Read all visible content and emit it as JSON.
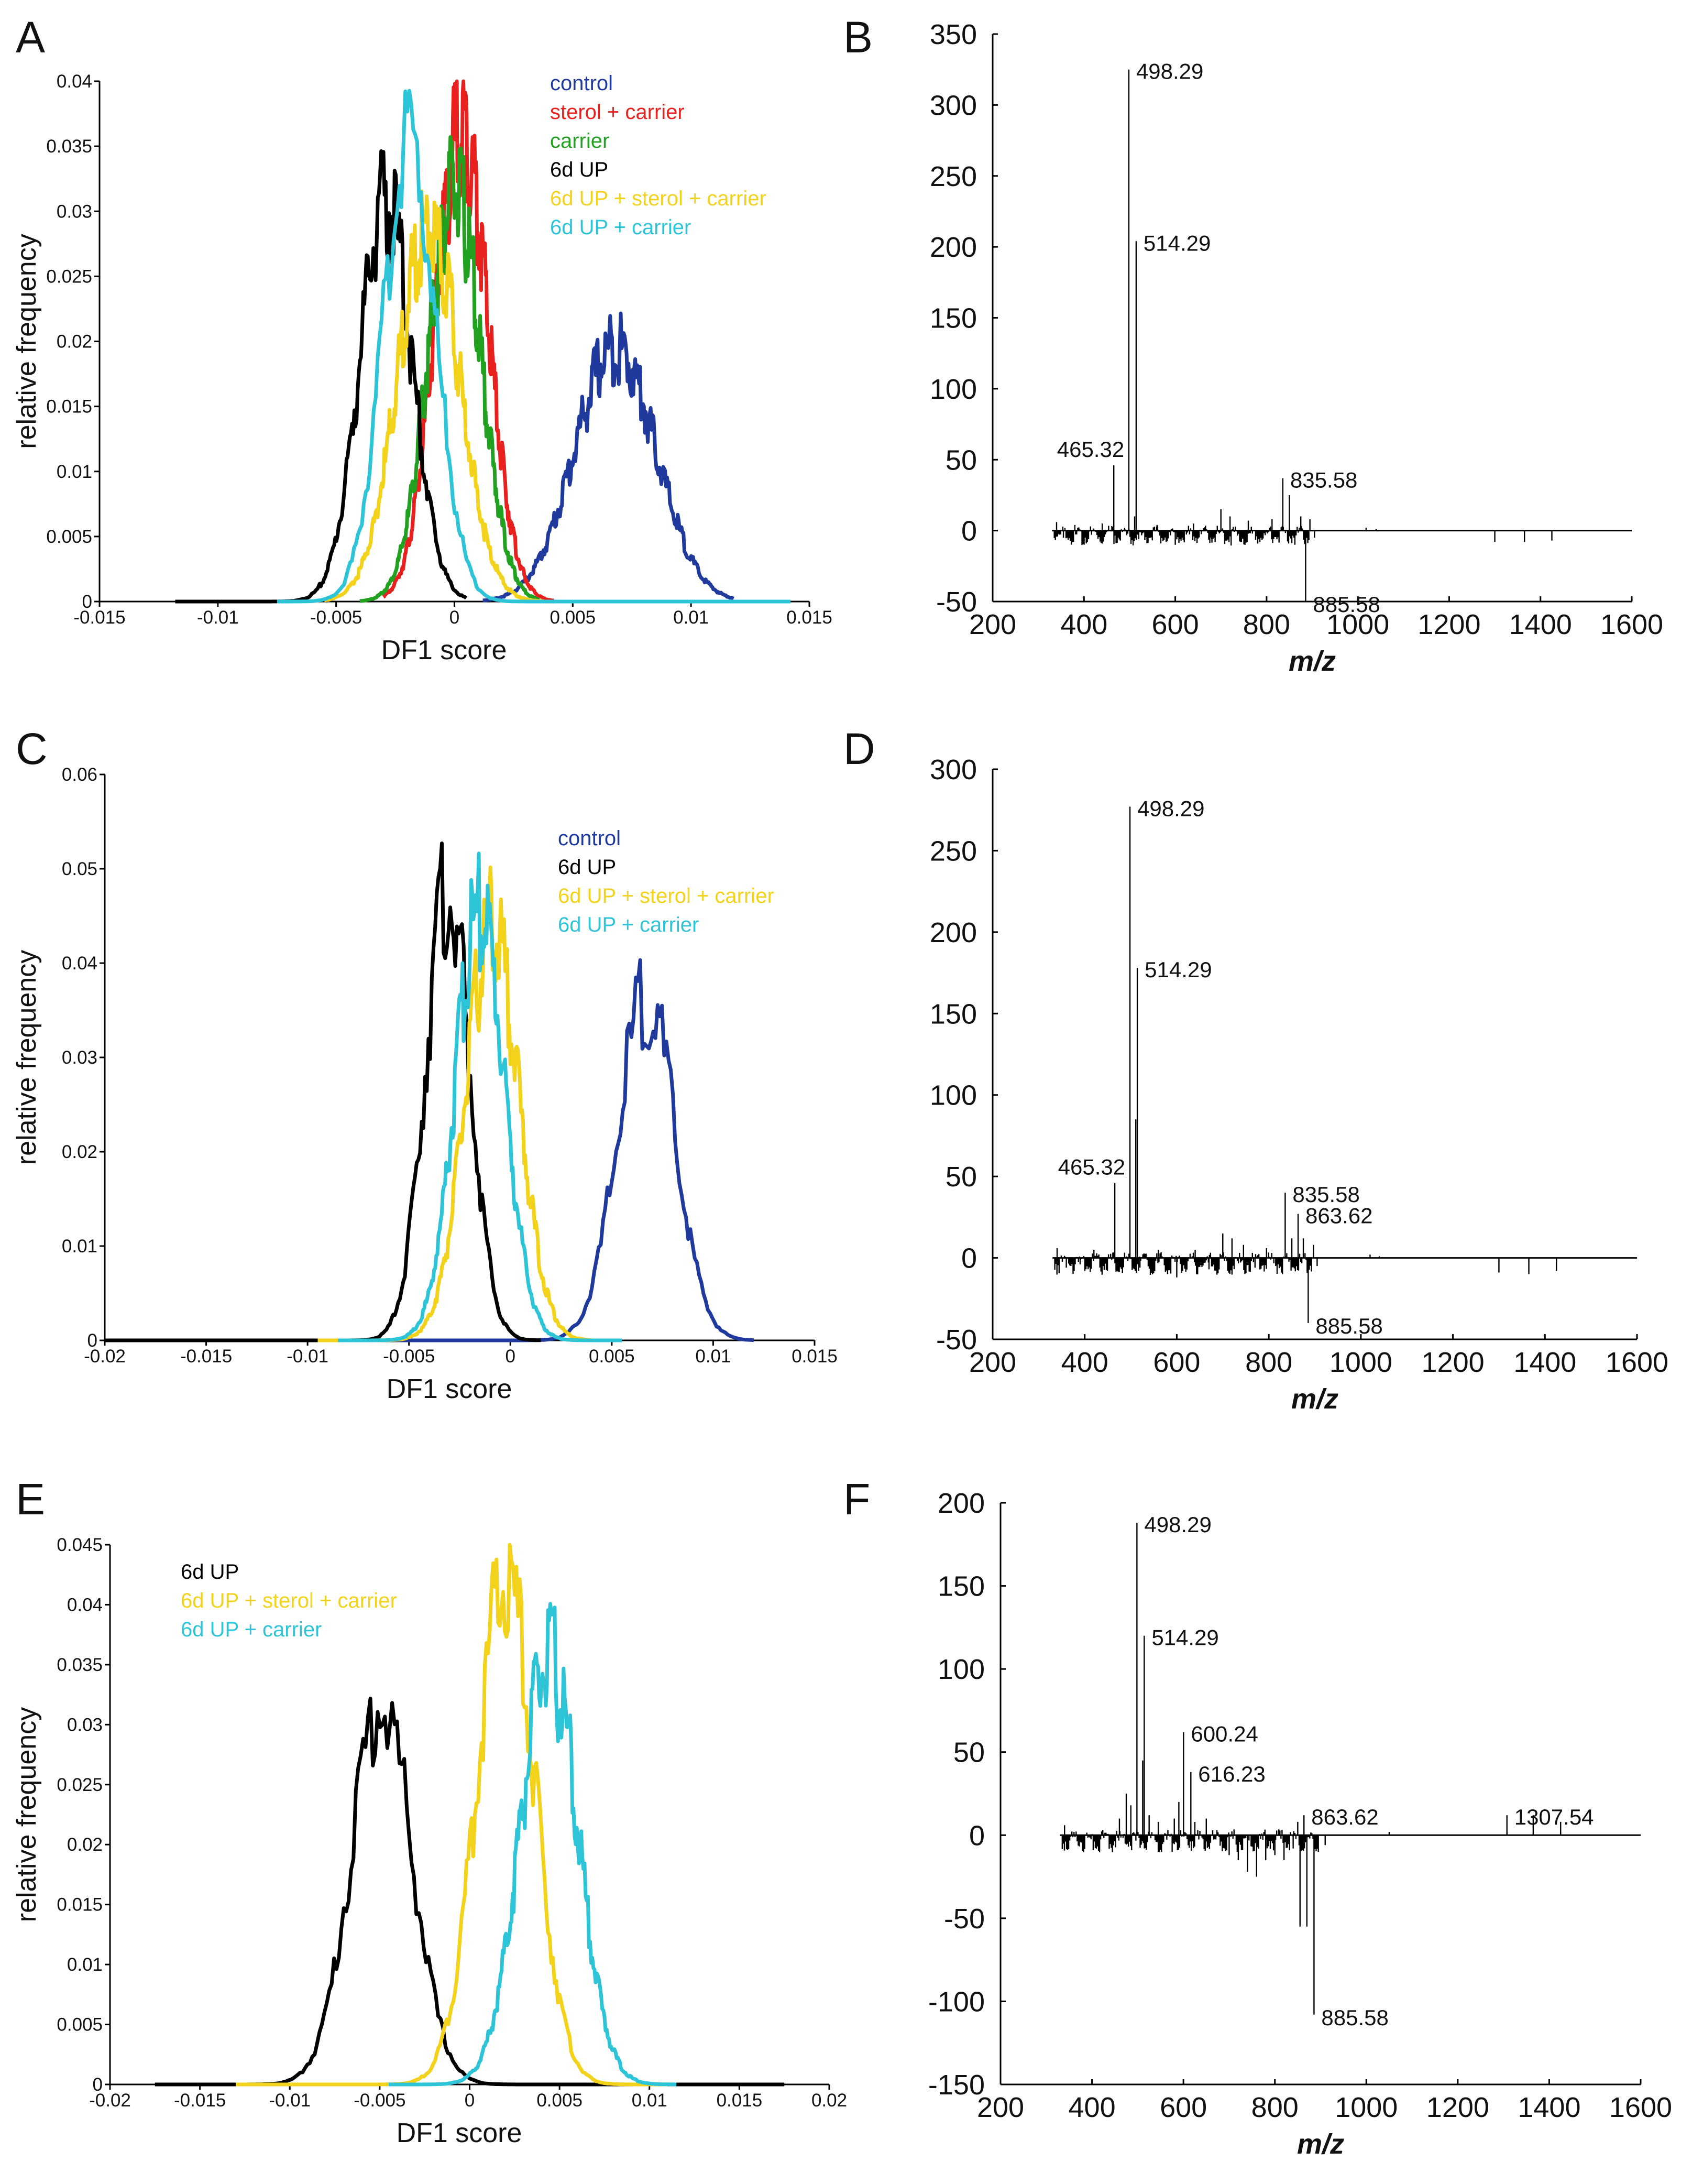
{
  "chart_data": [
    {
      "id": "A",
      "panel_label": "A",
      "type": "line",
      "xlabel": "DF1 score",
      "ylabel": "relative frequency",
      "xlim": [
        -0.015,
        0.015
      ],
      "ylim": [
        0,
        0.04
      ],
      "xticks": [
        "-0.015",
        "-0.01",
        "-0.005",
        "0",
        "0.005",
        "0.01",
        "0.015"
      ],
      "yticks": [
        "0",
        "0.005",
        "0.01",
        "0.015",
        "0.02",
        "0.025",
        "0.03",
        "0.035",
        "0.04"
      ],
      "legend_position": "top-right",
      "series": [
        {
          "name": "control",
          "color": "#1f3a9c",
          "mean": 0.0068,
          "sd": 0.0017,
          "peak": 0.021,
          "range": [
            0.0012,
            0.0118
          ]
        },
        {
          "name": "sterol + carrier",
          "color": "#e8201e",
          "mean": 0.0003,
          "sd": 0.0011,
          "peak": 0.039,
          "range": [
            -0.003,
            0.0042
          ]
        },
        {
          "name": "carrier",
          "color": "#22a020",
          "mean": 0.0,
          "sd": 0.0011,
          "peak": 0.034,
          "range": [
            -0.004,
            0.0036
          ]
        },
        {
          "name": "6d UP",
          "color": "#000000",
          "mean": -0.0029,
          "sd": 0.0011,
          "peak": 0.033,
          "range": [
            -0.0118,
            0.0005
          ]
        },
        {
          "name": "6d UP + sterol + carrier",
          "color": "#f2d21a",
          "mean": -0.0011,
          "sd": 0.0013,
          "peak": 0.031,
          "range": [
            -0.0055,
            0.0038
          ]
        },
        {
          "name": "6d UP + carrier",
          "color": "#2ec4d8",
          "mean": -0.0019,
          "sd": 0.0011,
          "peak": 0.038,
          "range": [
            -0.0075,
            0.0142
          ]
        }
      ]
    },
    {
      "id": "B",
      "panel_label": "B",
      "type": "bar",
      "xlabel": "m/z",
      "ylabel": "",
      "xlim": [
        200,
        1600
      ],
      "ylim": [
        -50,
        350
      ],
      "xticks": [
        "200",
        "400",
        "600",
        "800",
        "1000",
        "1200",
        "1400",
        "1600"
      ],
      "yticks": [
        "-50",
        "0",
        "50",
        "100",
        "150",
        "200",
        "250",
        "300",
        "350"
      ],
      "peaks": [
        {
          "mz": 498.29,
          "value": 325,
          "label": "498.29"
        },
        {
          "mz": 514.29,
          "value": 204,
          "label": "514.29"
        },
        {
          "mz": 465.32,
          "value": 46,
          "label": "465.32"
        },
        {
          "mz": 835.58,
          "value": 37,
          "label": "835.58"
        },
        {
          "mz": 885.58,
          "value": -50,
          "label": "885.58"
        },
        {
          "mz": 511,
          "value": 10
        },
        {
          "mz": 520,
          "value": -6
        },
        {
          "mz": 340,
          "value": 6
        },
        {
          "mz": 355,
          "value": -5
        },
        {
          "mz": 380,
          "value": 4
        },
        {
          "mz": 410,
          "value": -6
        },
        {
          "mz": 440,
          "value": 5
        },
        {
          "mz": 560,
          "value": 4
        },
        {
          "mz": 580,
          "value": -8
        },
        {
          "mz": 600,
          "value": -10
        },
        {
          "mz": 640,
          "value": 5
        },
        {
          "mz": 680,
          "value": -6
        },
        {
          "mz": 700,
          "value": 15
        },
        {
          "mz": 720,
          "value": 10
        },
        {
          "mz": 745,
          "value": -8
        },
        {
          "mz": 760,
          "value": 7
        },
        {
          "mz": 790,
          "value": -6
        },
        {
          "mz": 812,
          "value": 8
        },
        {
          "mz": 850,
          "value": 25
        },
        {
          "mz": 862,
          "value": -10
        },
        {
          "mz": 875,
          "value": 10
        },
        {
          "mz": 895,
          "value": 8
        },
        {
          "mz": 905,
          "value": -5
        },
        {
          "mz": 1018,
          "value": 2
        },
        {
          "mz": 1040,
          "value": 1
        },
        {
          "mz": 1300,
          "value": -8
        },
        {
          "mz": 1365,
          "value": -8
        },
        {
          "mz": 1425,
          "value": -7
        }
      ]
    },
    {
      "id": "C",
      "panel_label": "C",
      "type": "line",
      "xlabel": "DF1 score",
      "ylabel": "relative frequency",
      "xlim": [
        -0.02,
        0.015
      ],
      "ylim": [
        0,
        0.06
      ],
      "xticks": [
        "-0.02",
        "-0.015",
        "-0.01",
        "-0.005",
        "0",
        "0.005",
        "0.01",
        "0.015"
      ],
      "yticks": [
        "0",
        "0.01",
        "0.02",
        "0.03",
        "0.04",
        "0.05",
        "0.06"
      ],
      "legend_position": "top-right",
      "series": [
        {
          "name": "control",
          "color": "#1f3a9c",
          "mean": 0.0067,
          "sd": 0.0014,
          "peak": 0.039,
          "range": [
            -0.016,
            0.012
          ]
        },
        {
          "name": "6d UP",
          "color": "#000000",
          "mean": -0.0031,
          "sd": 0.0011,
          "peak": 0.051,
          "range": [
            -0.02,
            0.0015
          ]
        },
        {
          "name": "6d UP + sterol + carrier",
          "color": "#f2d21a",
          "mean": -0.0009,
          "sd": 0.0013,
          "peak": 0.047,
          "range": [
            -0.0095,
            0.004
          ]
        },
        {
          "name": "6d UP + carrier",
          "color": "#2ec4d8",
          "mean": -0.0015,
          "sd": 0.0012,
          "peak": 0.049,
          "range": [
            -0.0085,
            0.0055
          ]
        }
      ]
    },
    {
      "id": "D",
      "panel_label": "D",
      "type": "bar",
      "xlabel": "m/z",
      "ylabel": "",
      "xlim": [
        200,
        1600
      ],
      "ylim": [
        -50,
        300
      ],
      "xticks": [
        "200",
        "400",
        "600",
        "800",
        "1000",
        "1200",
        "1400",
        "1600"
      ],
      "yticks": [
        "-50",
        "0",
        "50",
        "100",
        "150",
        "200",
        "250",
        "300"
      ],
      "peaks": [
        {
          "mz": 498.29,
          "value": 277,
          "label": "498.29"
        },
        {
          "mz": 514.29,
          "value": 178,
          "label": "514.29"
        },
        {
          "mz": 465.32,
          "value": 46,
          "label": "465.32"
        },
        {
          "mz": 835.58,
          "value": 40,
          "label": "835.58"
        },
        {
          "mz": 863.62,
          "value": 27,
          "label": "863.62"
        },
        {
          "mz": 885.58,
          "value": -40,
          "label": "885.58"
        },
        {
          "mz": 511,
          "value": 85
        },
        {
          "mz": 520,
          "value": -6
        },
        {
          "mz": 340,
          "value": 6
        },
        {
          "mz": 360,
          "value": -6
        },
        {
          "mz": 390,
          "value": -4
        },
        {
          "mz": 420,
          "value": 5
        },
        {
          "mz": 440,
          "value": -5
        },
        {
          "mz": 560,
          "value": 5
        },
        {
          "mz": 580,
          "value": -10
        },
        {
          "mz": 600,
          "value": -12
        },
        {
          "mz": 640,
          "value": 5
        },
        {
          "mz": 670,
          "value": -7
        },
        {
          "mz": 700,
          "value": 15
        },
        {
          "mz": 720,
          "value": 12
        },
        {
          "mz": 745,
          "value": 8
        },
        {
          "mz": 770,
          "value": -6
        },
        {
          "mz": 795,
          "value": 6
        },
        {
          "mz": 815,
          "value": -5
        },
        {
          "mz": 850,
          "value": 12
        },
        {
          "mz": 875,
          "value": 12
        },
        {
          "mz": 897,
          "value": 8
        },
        {
          "mz": 905,
          "value": -5
        },
        {
          "mz": 1020,
          "value": 2
        },
        {
          "mz": 1040,
          "value": 1
        },
        {
          "mz": 1300,
          "value": -9
        },
        {
          "mz": 1365,
          "value": -10
        },
        {
          "mz": 1425,
          "value": -8
        }
      ]
    },
    {
      "id": "E",
      "panel_label": "E",
      "type": "line",
      "xlabel": "DF1 score",
      "ylabel": "relative frequency",
      "xlim": [
        -0.02,
        0.02
      ],
      "ylim": [
        0,
        0.045
      ],
      "xticks": [
        "-0.02",
        "-0.015",
        "-0.01",
        "-0.005",
        "0",
        "0.005",
        "0.01",
        "0.015",
        "0.02"
      ],
      "yticks": [
        "0",
        "0.005",
        "0.01",
        "0.015",
        "0.02",
        "0.025",
        "0.03",
        "0.035",
        "0.04",
        "0.045"
      ],
      "legend_position": "top-left",
      "series": [
        {
          "name": "6d UP",
          "color": "#000000",
          "mean": -0.0049,
          "sd": 0.0017,
          "peak": 0.034,
          "range": [
            -0.0175,
            0.0175
          ]
        },
        {
          "name": "6d UP + sterol + carrier",
          "color": "#f2d21a",
          "mean": 0.002,
          "sd": 0.0016,
          "peak": 0.045,
          "range": [
            -0.013,
            0.011
          ]
        },
        {
          "name": "6d UP + carrier",
          "color": "#2ec4d8",
          "mean": 0.0044,
          "sd": 0.0016,
          "peak": 0.038,
          "range": [
            -0.0045,
            0.0115
          ]
        }
      ]
    },
    {
      "id": "F",
      "panel_label": "F",
      "type": "bar",
      "xlabel": "m/z",
      "ylabel": "",
      "xlim": [
        200,
        1600
      ],
      "ylim": [
        -150,
        200
      ],
      "xticks": [
        "200",
        "400",
        "600",
        "800",
        "1000",
        "1200",
        "1400",
        "1600"
      ],
      "yticks": [
        "-150",
        "-100",
        "-50",
        "0",
        "50",
        "100",
        "150",
        "200"
      ],
      "peaks": [
        {
          "mz": 498.29,
          "value": 188,
          "label": "498.29"
        },
        {
          "mz": 514.29,
          "value": 120,
          "label": "514.29"
        },
        {
          "mz": 600.24,
          "value": 62,
          "label": "600.24"
        },
        {
          "mz": 616.23,
          "value": 38,
          "label": "616.23"
        },
        {
          "mz": 863.62,
          "value": 12,
          "label": "863.62"
        },
        {
          "mz": 1307.54,
          "value": 12,
          "label": "1307.54"
        },
        {
          "mz": 885.58,
          "value": -108,
          "label": "885.58"
        },
        {
          "mz": 511,
          "value": 45
        },
        {
          "mz": 870,
          "value": -55
        },
        {
          "mz": 855,
          "value": -55
        },
        {
          "mz": 340,
          "value": 6
        },
        {
          "mz": 460,
          "value": 10
        },
        {
          "mz": 475,
          "value": 25
        },
        {
          "mz": 485,
          "value": 18
        },
        {
          "mz": 525,
          "value": 12
        },
        {
          "mz": 545,
          "value": 8
        },
        {
          "mz": 580,
          "value": 10
        },
        {
          "mz": 590,
          "value": 20
        },
        {
          "mz": 625,
          "value": 8
        },
        {
          "mz": 650,
          "value": 10
        },
        {
          "mz": 700,
          "value": -12
        },
        {
          "mz": 720,
          "value": -15
        },
        {
          "mz": 740,
          "value": -22
        },
        {
          "mz": 760,
          "value": -25
        },
        {
          "mz": 780,
          "value": -15
        },
        {
          "mz": 800,
          "value": -12
        },
        {
          "mz": 820,
          "value": -15
        },
        {
          "mz": 840,
          "value": -8
        },
        {
          "mz": 850,
          "value": 8
        },
        {
          "mz": 895,
          "value": -10
        },
        {
          "mz": 910,
          "value": -6
        },
        {
          "mz": 1050,
          "value": 2
        },
        {
          "mz": 1365,
          "value": 12
        },
        {
          "mz": 1425,
          "value": 8
        }
      ]
    }
  ]
}
